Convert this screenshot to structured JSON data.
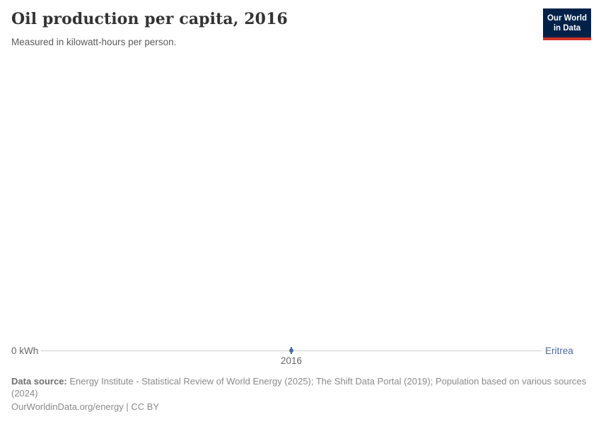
{
  "header": {
    "title": "Oil production per capita, 2016",
    "subtitle": "Measured in kilowatt-hours per person.",
    "logo_line1": "Our World",
    "logo_line2": "in Data"
  },
  "chart": {
    "y_axis_zero_label": "0 kWh",
    "x_tick_label": "2016",
    "entity_label": "Eritrea"
  },
  "chart_data": {
    "type": "line",
    "title": "Oil production per capita, 2016",
    "subtitle": "Measured in kilowatt-hours per person.",
    "x": [
      2016
    ],
    "series": [
      {
        "name": "Eritrea",
        "values": [
          0
        ]
      }
    ],
    "unit": "kWh",
    "xlabel": "",
    "ylabel": "kilowatt-hours per person",
    "ylim": [
      0,
      0
    ],
    "grid": false,
    "legend_position": "end-of-line-label-right"
  },
  "footer": {
    "data_source_label": "Data source:",
    "data_source_text": " Energy Institute - Statistical Review of World Energy (2025); The Shift Data Portal (2019); Population based on various sources (2024)",
    "license_line": "OurWorldinData.org/energy | CC BY"
  },
  "colors": {
    "accent_blue": "#4C6A9C",
    "logo_navy": "#002147",
    "logo_red": "#CF342A",
    "axis_line": "#CCCCCC"
  }
}
